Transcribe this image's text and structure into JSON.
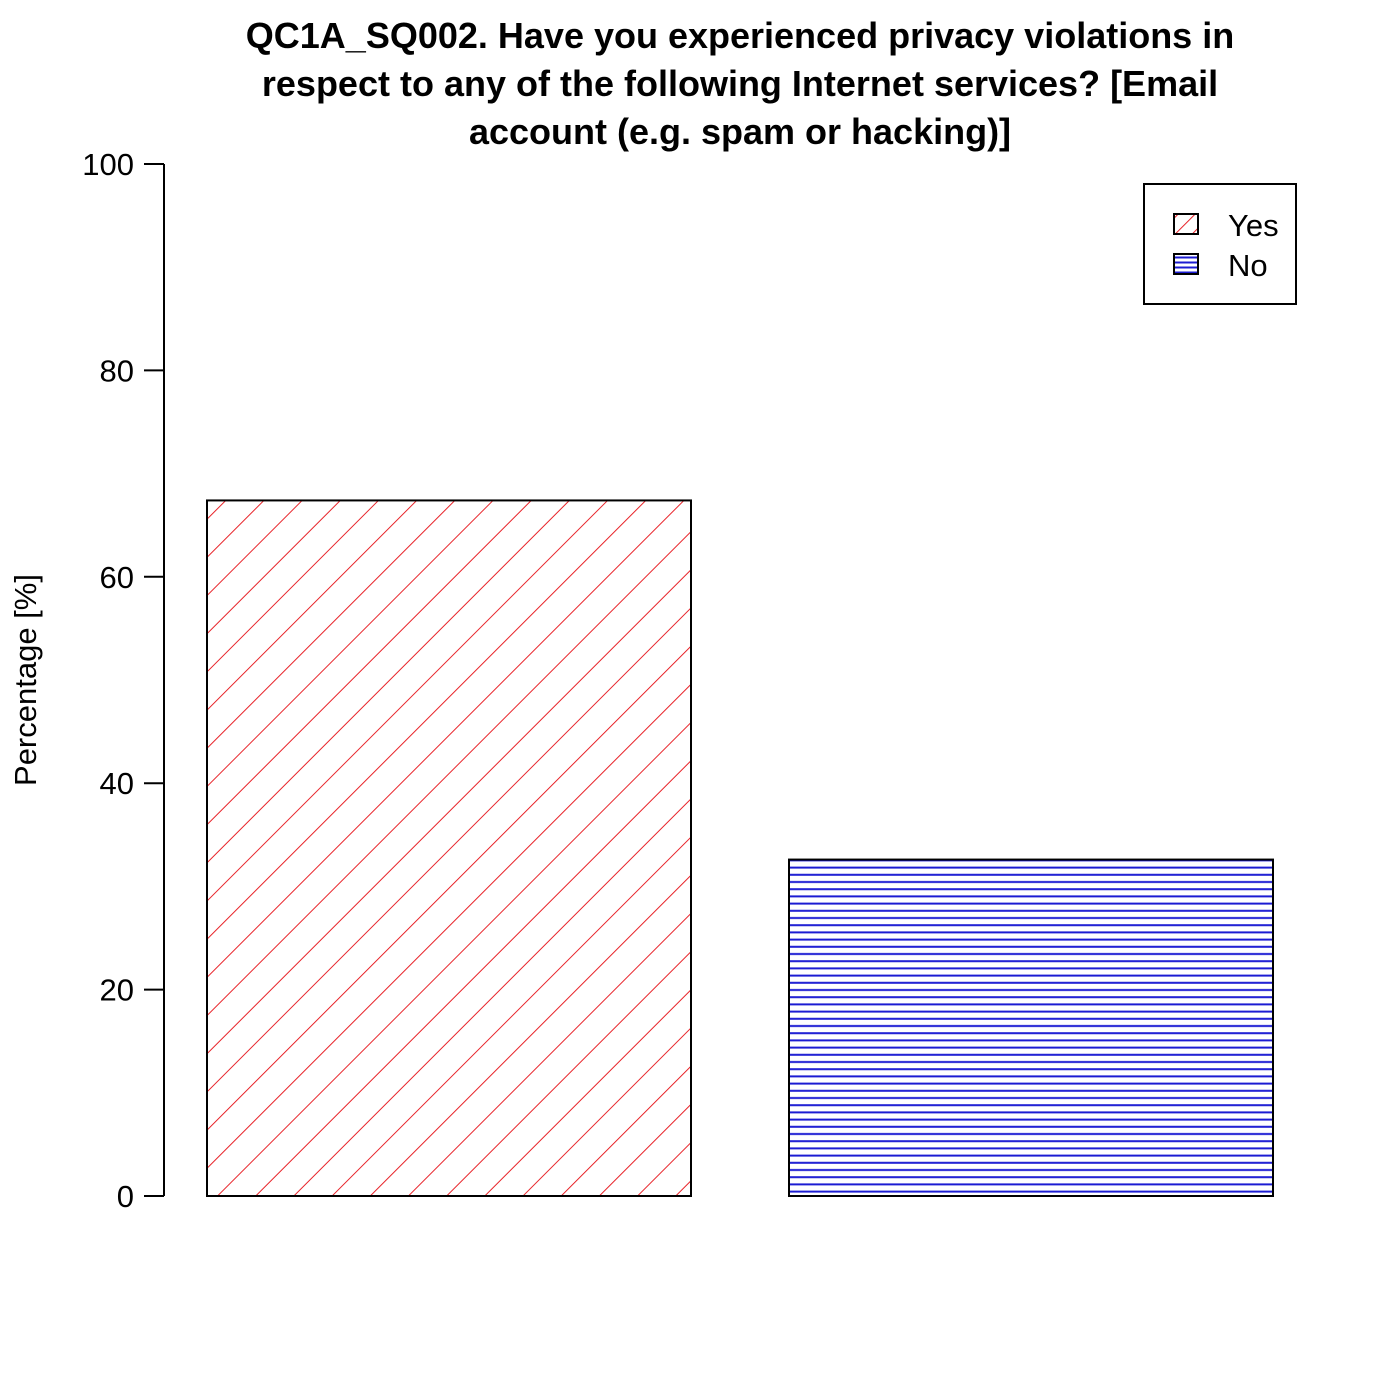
{
  "chart_data": {
    "type": "bar",
    "title_lines": [
      "QC1A_SQ002. Have you experienced privacy violations in",
      "respect to any of the following Internet services? [Email",
      "account (e.g. spam or hacking)]"
    ],
    "xlabel": "",
    "ylabel": "Percentage [%]",
    "ylim": [
      0,
      100
    ],
    "yticks": [
      "0",
      "20",
      "40",
      "60",
      "80",
      "100"
    ],
    "categories": [
      "Yes",
      "No"
    ],
    "values": [
      67.4,
      32.6
    ],
    "fills": [
      {
        "pattern": "diagonal-hatch",
        "color": "#e8242a"
      },
      {
        "pattern": "horizontal-hatch",
        "color": "#1c1cd2"
      }
    ],
    "legend": {
      "position": "top-right",
      "entries": [
        "Yes",
        "No"
      ]
    },
    "grid": false
  }
}
